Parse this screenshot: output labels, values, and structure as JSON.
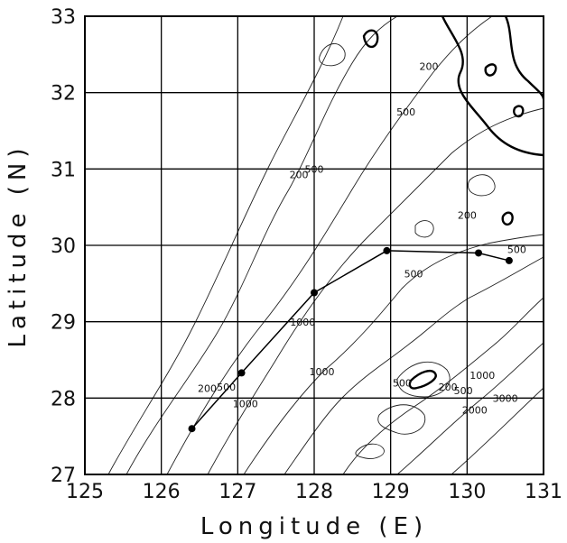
{
  "chart_data": {
    "type": "scatter",
    "xlabel": "Longitude (E)",
    "ylabel": "Latitude (N)",
    "xlim": [
      125,
      131
    ],
    "ylim": [
      27,
      33
    ],
    "xticks": [
      "125",
      "126",
      "127",
      "128",
      "129",
      "130",
      "131"
    ],
    "yticks": [
      "27",
      "28",
      "29",
      "30",
      "31",
      "32",
      "33"
    ],
    "grid": true,
    "series": [
      {
        "x": [
          126.4,
          127.05,
          128.0,
          128.95,
          130.15,
          130.55
        ],
        "y": [
          27.6,
          28.33,
          29.38,
          29.93,
          29.9,
          29.8
        ]
      }
    ],
    "contour_labels": [
      {
        "text": "200",
        "x": 129.5,
        "y": 32.3
      },
      {
        "text": "500",
        "x": 129.2,
        "y": 31.7
      },
      {
        "text": "200",
        "x": 127.8,
        "y": 30.88
      },
      {
        "text": "500",
        "x": 128.0,
        "y": 30.95
      },
      {
        "text": "200",
        "x": 130.0,
        "y": 30.35
      },
      {
        "text": "500",
        "x": 129.3,
        "y": 29.58
      },
      {
        "text": "500",
        "x": 130.65,
        "y": 29.9
      },
      {
        "text": "1000",
        "x": 127.85,
        "y": 28.95
      },
      {
        "text": "1000",
        "x": 128.1,
        "y": 28.3
      },
      {
        "text": "200",
        "x": 126.6,
        "y": 28.08
      },
      {
        "text": "500",
        "x": 126.85,
        "y": 28.1
      },
      {
        "text": "1000",
        "x": 127.1,
        "y": 27.88
      },
      {
        "text": "500",
        "x": 129.15,
        "y": 28.15
      },
      {
        "text": "200",
        "x": 129.75,
        "y": 28.1
      },
      {
        "text": "500",
        "x": 129.95,
        "y": 28.05
      },
      {
        "text": "1000",
        "x": 130.2,
        "y": 28.25
      },
      {
        "text": "2000",
        "x": 130.1,
        "y": 27.8
      },
      {
        "text": "3000",
        "x": 130.5,
        "y": 27.95
      }
    ]
  }
}
